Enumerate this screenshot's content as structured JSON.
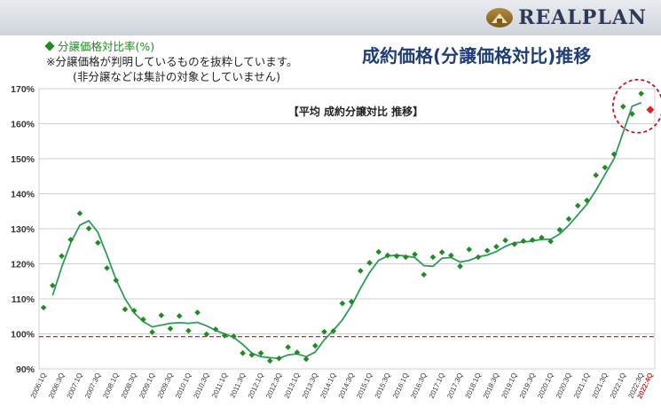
{
  "header": {
    "logo_text": "REALPLAN",
    "main_title": "成約価格(分譲価格対比)推移",
    "legend_label": "分譲価格対比率(%)",
    "note1": "※分譲価格が判明しているものを抜粋しています。",
    "note2": "(非分譲などは集計の対象としていません)"
  },
  "colors": {
    "point": "#1e8c1e",
    "line": "#2e9b5a",
    "latest": "#e02020",
    "baseline": "#e02020",
    "highlight_circle": "#c8102e",
    "title": "#1f3d7a"
  },
  "chart_data": {
    "type": "scatter",
    "title": "【平均 成約分譲対比 推移】",
    "ylim": [
      90,
      170
    ],
    "yticks": [
      90,
      100,
      110,
      120,
      130,
      140,
      150,
      160,
      170
    ],
    "ytick_labels": [
      "90%",
      "100%",
      "110%",
      "120%",
      "130%",
      "140%",
      "150%",
      "160%",
      "170%"
    ],
    "grid": true,
    "baseline": 99.2,
    "x_labels": [
      "2006:1Q",
      "2006:3Q",
      "2007:1Q",
      "2007:3Q",
      "2008:1Q",
      "2008:3Q",
      "2009:1Q",
      "2009:3Q",
      "2010:1Q",
      "2010:3Q",
      "2011:1Q",
      "2011:3Q",
      "2012:1Q",
      "2012:3Q",
      "2013:1Q",
      "2013:3Q",
      "2014:1Q",
      "2014:3Q",
      "2015:1Q",
      "2015:3Q",
      "2016:1Q",
      "2016:3Q",
      "2017:1Q",
      "2017:3Q",
      "2018:1Q",
      "2018:3Q",
      "2019:1Q",
      "2019:3Q",
      "2020:1Q",
      "2020:3Q",
      "2021:1Q",
      "2021:3Q",
      "2022:1Q",
      "2022:3Q",
      "2022:4Q"
    ],
    "series": [
      {
        "kind": "points",
        "values": [
          107.5,
          113.8,
          122.2,
          126.9,
          134.4,
          130.1,
          126.0,
          118.8,
          115.3,
          107.0,
          106.6,
          104.1,
          100.5,
          105.3,
          101.5,
          105.1,
          100.9,
          106.1,
          99.9,
          101.3,
          99.5,
          99.3,
          94.5,
          94.0,
          94.5,
          92.3,
          93.0,
          96.2,
          94.7,
          92.8,
          96.6,
          100.6,
          100.8,
          108.7,
          109.2,
          118.0,
          120.3,
          123.4,
          122.4,
          122.2,
          121.9,
          122.7,
          116.9,
          121.9,
          123.3,
          122.4,
          119.3,
          124.1,
          121.9,
          123.8,
          124.9,
          126.7,
          125.6,
          126.5,
          126.8,
          127.5,
          126.4,
          129.7,
          132.8,
          136.6,
          138.1,
          145.3,
          147.5,
          151.3,
          164.9,
          162.8,
          168.6
        ]
      },
      {
        "kind": "line",
        "values": [
          null,
          111.0,
          119.0,
          126.0,
          131.0,
          132.3,
          129.0,
          122.5,
          115.5,
          110.0,
          106.0,
          103.5,
          102.0,
          102.5,
          103.0,
          103.2,
          103.0,
          103.3,
          102.3,
          101.0,
          100.0,
          99.0,
          97.0,
          94.5,
          93.5,
          93.2,
          93.0,
          94.0,
          94.3,
          93.5,
          94.8,
          98.3,
          101.0,
          104.0,
          108.0,
          113.0,
          117.5,
          121.0,
          122.2,
          122.5,
          122.2,
          121.8,
          119.5,
          119.3,
          121.6,
          121.8,
          120.5,
          121.0,
          122.0,
          122.5,
          123.5,
          125.0,
          126.0,
          126.2,
          126.5,
          127.0,
          127.0,
          128.5,
          131.0,
          134.0,
          137.0,
          141.0,
          145.5,
          150.0,
          157.5,
          165.0,
          166.0
        ]
      },
      {
        "kind": "latest",
        "values": [
          164.0
        ]
      }
    ]
  }
}
